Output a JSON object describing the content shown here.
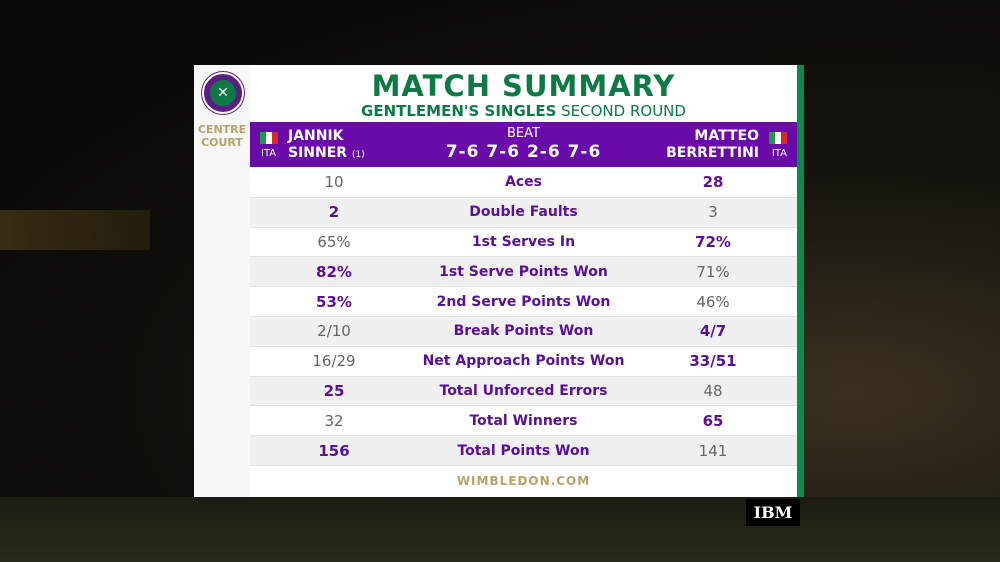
{
  "header": {
    "title": "MATCH SUMMARY",
    "event": "GENTLEMEN'S SINGLES",
    "round": "SECOND ROUND",
    "court_line1": "CENTRE",
    "court_line2": "COURT"
  },
  "match": {
    "player1": {
      "first": "JANNIK",
      "last": "SINNER",
      "seed": "(1)",
      "country": "ITA"
    },
    "player2": {
      "first": "MATTEO",
      "last": "BERRETTINI",
      "country": "ITA"
    },
    "result": "BEAT",
    "score": "7-6 7-6 2-6 7-6"
  },
  "stats": [
    {
      "label": "Aces",
      "p1": "10",
      "p2": "28",
      "p1_bold": false,
      "p2_bold": true
    },
    {
      "label": "Double Faults",
      "p1": "2",
      "p2": "3",
      "p1_bold": true,
      "p2_bold": false
    },
    {
      "label": "1st Serves In",
      "p1": "65%",
      "p2": "72%",
      "p1_bold": false,
      "p2_bold": true
    },
    {
      "label": "1st Serve Points Won",
      "p1": "82%",
      "p2": "71%",
      "p1_bold": true,
      "p2_bold": false
    },
    {
      "label": "2nd Serve Points Won",
      "p1": "53%",
      "p2": "46%",
      "p1_bold": true,
      "p2_bold": false
    },
    {
      "label": "Break Points Won",
      "p1": "2/10",
      "p2": "4/7",
      "p1_bold": false,
      "p2_bold": true
    },
    {
      "label": "Net Approach Points Won",
      "p1": "16/29",
      "p2": "33/51",
      "p1_bold": false,
      "p2_bold": true
    },
    {
      "label": "Total Unforced Errors",
      "p1": "25",
      "p2": "48",
      "p1_bold": true,
      "p2_bold": false
    },
    {
      "label": "Total Winners",
      "p1": "32",
      "p2": "65",
      "p1_bold": false,
      "p2_bold": true
    },
    {
      "label": "Total Points Won",
      "p1": "156",
      "p2": "141",
      "p1_bold": true,
      "p2_bold": false
    }
  ],
  "footer": "WIMBLEDON.COM",
  "sponsor": "IBM",
  "colors": {
    "purple": "#6a0aa8",
    "green": "#0c7a45",
    "gold": "#b8a16a"
  }
}
